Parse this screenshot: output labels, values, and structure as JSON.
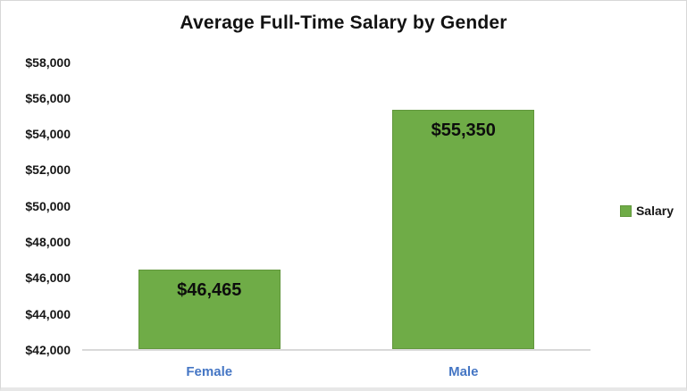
{
  "title": "Average Full-Time Salary by Gender",
  "legend": {
    "position": "right",
    "items": [
      {
        "label": "Salary",
        "color": "#6fac47",
        "border_color": "#61973c"
      }
    ]
  },
  "chart_data": {
    "type": "bar",
    "title": "Average Full-Time Salary by Gender",
    "categories": [
      "Female",
      "Male"
    ],
    "series": [
      {
        "name": "Salary",
        "values": [
          46465,
          55350
        ]
      }
    ],
    "bar_labels": [
      "$46,465",
      "$55,350"
    ],
    "y_ticks": [
      "$42,000",
      "$44,000",
      "$46,000",
      "$48,000",
      "$50,000",
      "$52,000",
      "$54,000",
      "$56,000",
      "$58,000"
    ],
    "y_tick_values": [
      42000,
      44000,
      46000,
      48000,
      50000,
      52000,
      54000,
      56000,
      58000
    ],
    "ylim": [
      42000,
      58000
    ],
    "xlabel": "",
    "ylabel": "",
    "grid": false,
    "legend_position": "right",
    "colors": {
      "bar_fill": "#6fac47",
      "bar_border": "#61973c",
      "category_label": "#4576c4",
      "axis_line": "#d9d9d9",
      "text": "#121212"
    }
  }
}
